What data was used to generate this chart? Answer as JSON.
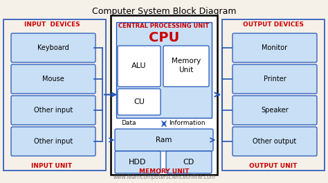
{
  "title": "Computer System Block Diagram",
  "bg_color": "#f5f0e8",
  "input_label_top": "INPUT  DEVICES",
  "input_label_bot": "INPUT UNIT",
  "output_label_top": "OUTPUT DEVICES",
  "output_label_bot": "OUTPUT UNIT",
  "cpu_label_top": "CENTRAL PROCESSING UNIT",
  "memory_label_bot": "MEMORY UNIT",
  "cpu_text": "CPU",
  "input_items": [
    "Keyboard",
    "Mouse",
    "Other input",
    "Other input"
  ],
  "output_items": [
    "Monitor",
    "Printer",
    "Speaker",
    "Other output"
  ],
  "memory_unit_label": "Memory\nUnit",
  "ram_label": "Ram",
  "hdd_label": "HDD",
  "cd_label": "CD",
  "alu_label": "ALU",
  "cu_label": "CU",
  "data_label": "Data",
  "info_label": "Information",
  "website": "www.learncomputerscienceonline.com",
  "red_color": "#cc0000",
  "blue_color": "#2255bb",
  "light_blue_box": "#c8dff5",
  "box_border": "#2255bb",
  "cpu_inner_bg": "#c8dff5",
  "memory_bg": "#c8dff5",
  "center_outer_bg": "white",
  "left_bg": "#f5f0e8",
  "right_bg": "#f5f0e8"
}
